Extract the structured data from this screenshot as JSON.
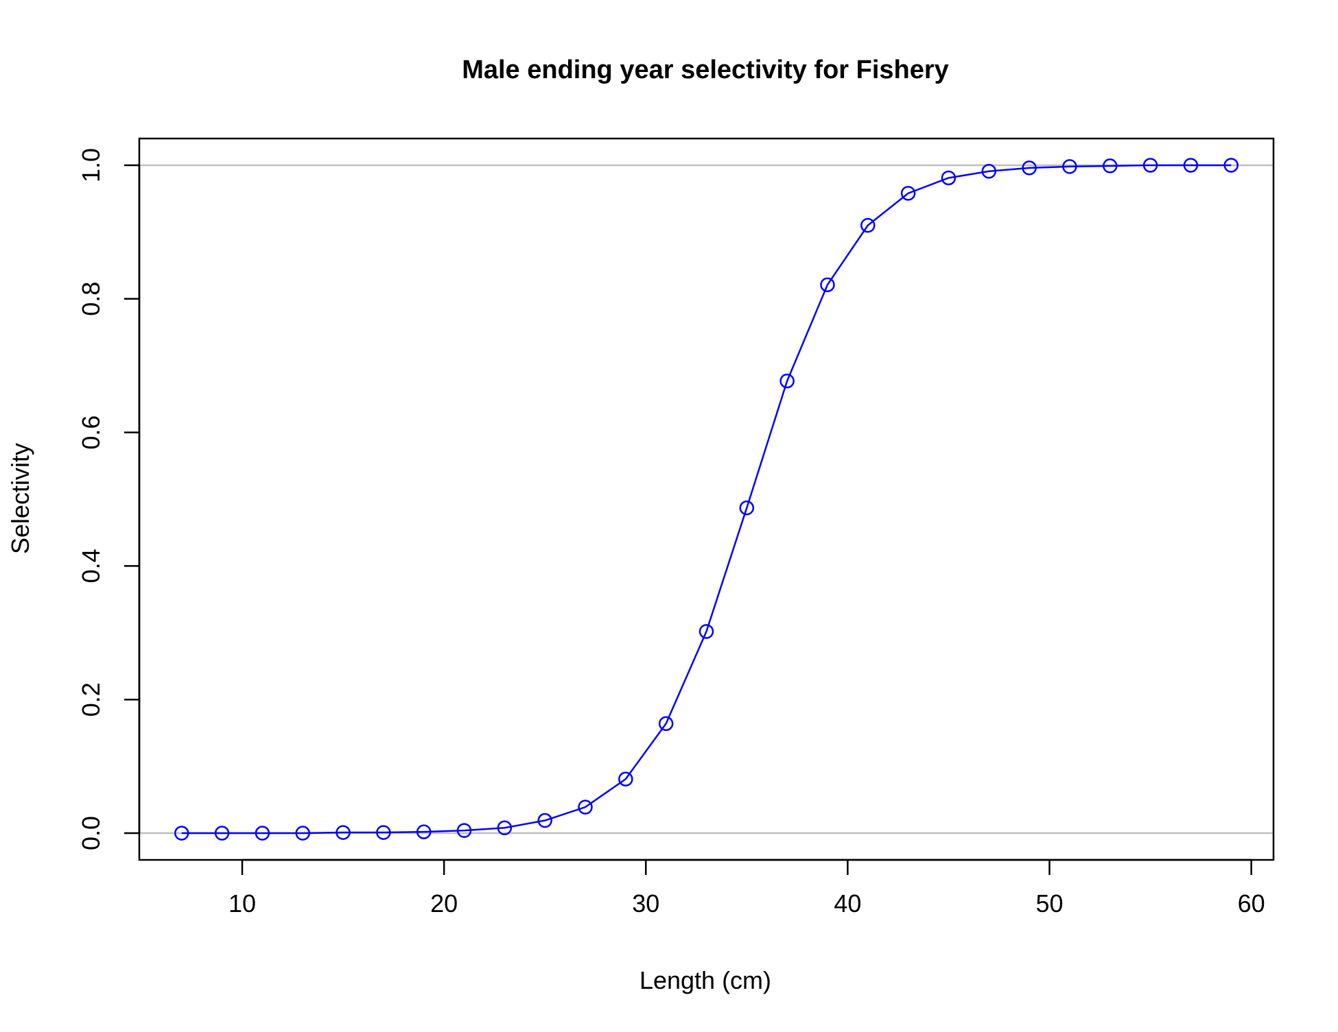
{
  "chart_data": {
    "type": "line",
    "title": "Male ending year selectivity for Fishery",
    "xlabel": "Length (cm)",
    "ylabel": "Selectivity",
    "xlim": [
      4.9,
      61.1
    ],
    "ylim": [
      -0.04,
      1.04
    ],
    "x_ticks": [
      10,
      20,
      30,
      40,
      50,
      60
    ],
    "y_ticks": [
      0.0,
      0.2,
      0.4,
      0.6,
      0.8,
      1.0
    ],
    "x_tick_labels": [
      "10",
      "20",
      "30",
      "40",
      "50",
      "60"
    ],
    "y_tick_labels": [
      "0.0",
      "0.2",
      "0.4",
      "0.6",
      "0.8",
      "1.0"
    ],
    "reference_lines_y": [
      0.0,
      1.0
    ],
    "grid": false,
    "legend": "none",
    "colors": {
      "series": "#0000ff",
      "reference_line": "#bebebe",
      "axes": "#000000"
    },
    "marker": "open-circle",
    "series": [
      {
        "x": [
          7,
          9,
          11,
          13,
          15,
          17,
          19,
          21,
          23,
          25,
          27,
          29,
          31,
          33,
          35,
          37,
          39,
          41,
          43,
          45,
          47,
          49,
          51,
          53,
          55,
          57,
          59
        ],
        "values": [
          0.0,
          0.0,
          0.0,
          0.0,
          0.001,
          0.001,
          0.002,
          0.004,
          0.008,
          0.019,
          0.039,
          0.081,
          0.164,
          0.302,
          0.487,
          0.677,
          0.821,
          0.91,
          0.958,
          0.981,
          0.991,
          0.996,
          0.998,
          0.999,
          1.0,
          1.0,
          1.0
        ]
      }
    ]
  }
}
